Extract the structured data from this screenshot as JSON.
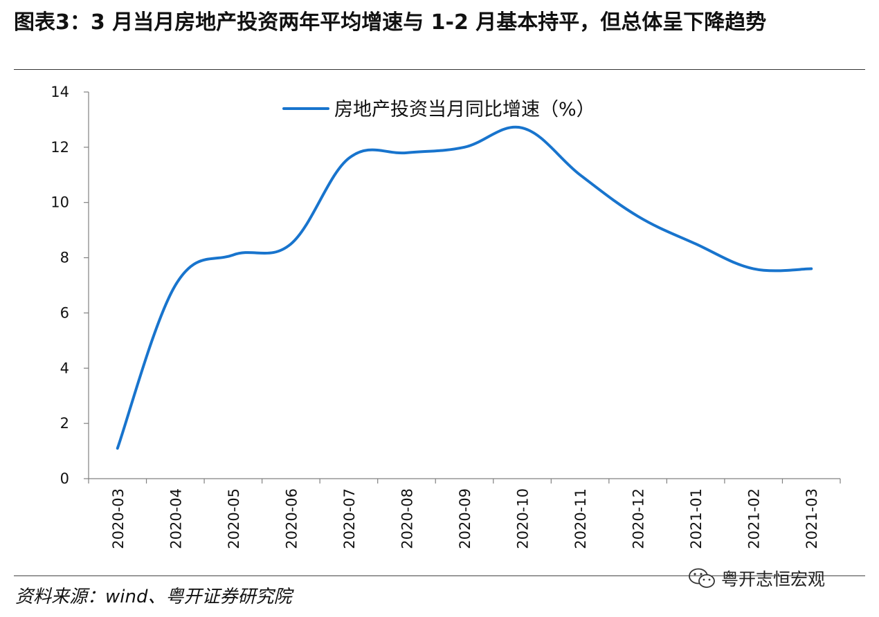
{
  "header": {
    "title": "图表3：3 月当月房地产投资两年平均增速与 1-2 月基本持平，但总体呈下降趋势"
  },
  "footer": {
    "source": "资料来源：wind、粤开证券研究院",
    "watermark": "粤开志恒宏观",
    "watermark_icon": "wechat-icon"
  },
  "chart_data": {
    "type": "line",
    "title": "",
    "xlabel": "",
    "ylabel": "",
    "categories": [
      "2020-03",
      "2020-04",
      "2020-05",
      "2020-06",
      "2020-07",
      "2020-08",
      "2020-09",
      "2020-10",
      "2020-11",
      "2020-12",
      "2021-01",
      "2021-02",
      "2021-03"
    ],
    "series": [
      {
        "name": "房地产投资当月同比增速（%）",
        "values": [
          1.1,
          7.0,
          8.1,
          8.5,
          11.6,
          11.8,
          12.0,
          12.7,
          11.0,
          9.5,
          8.5,
          7.6,
          7.6
        ],
        "color": "#1874cd"
      }
    ],
    "ylim": [
      0,
      14
    ],
    "yticks": [
      "0",
      "2",
      "4",
      "6",
      "8",
      "10",
      "12",
      "14"
    ],
    "grid": false,
    "legend_position": "top-center",
    "axis_color": "#808080"
  }
}
